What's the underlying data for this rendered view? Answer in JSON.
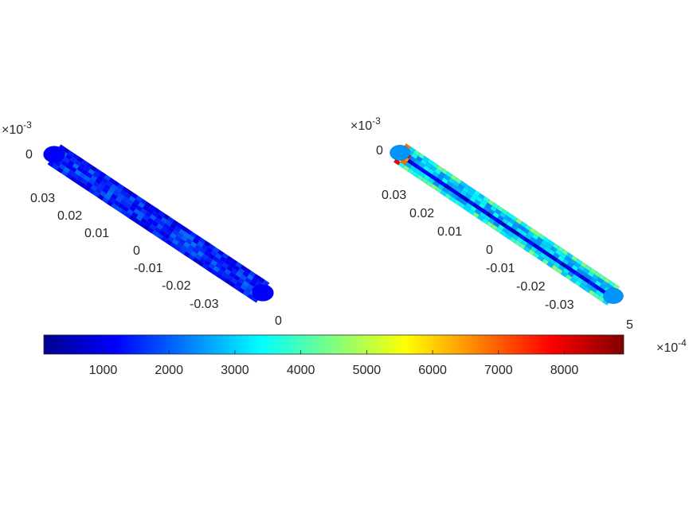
{
  "chart_data": {
    "type": "3d-surface-pair",
    "colormap": "jet",
    "colors": [
      "#00008f",
      "#0000ff",
      "#0080ff",
      "#00ffff",
      "#80ff80",
      "#ffff00",
      "#ff8000",
      "#ff0000",
      "#800000"
    ],
    "plots": [
      {
        "exponent_label": "×10",
        "exponent_power": "-3",
        "axis_ticks": [
          "0",
          "0.03",
          "0.02",
          "0.01",
          "0",
          "-0.01",
          "-0.02",
          "-0.03"
        ],
        "end_tick": "0",
        "fill_level": 0.17
      },
      {
        "exponent_label": "×10",
        "exponent_power": "-3",
        "axis_ticks": [
          "0",
          "0.03",
          "0.02",
          "0.01",
          "0",
          "-0.01",
          "-0.02",
          "-0.03"
        ],
        "end_tick": "5",
        "fill_level": 0.32
      }
    ],
    "colorbar": {
      "ticks": [
        "1000",
        "2000",
        "3000",
        "4000",
        "5000",
        "6000",
        "7000",
        "8000"
      ],
      "tick_values": [
        1000,
        2000,
        3000,
        4000,
        5000,
        6000,
        7000,
        8000
      ],
      "range": [
        100,
        8900
      ],
      "exponent_label": "×10",
      "exponent_power": "-4"
    }
  }
}
